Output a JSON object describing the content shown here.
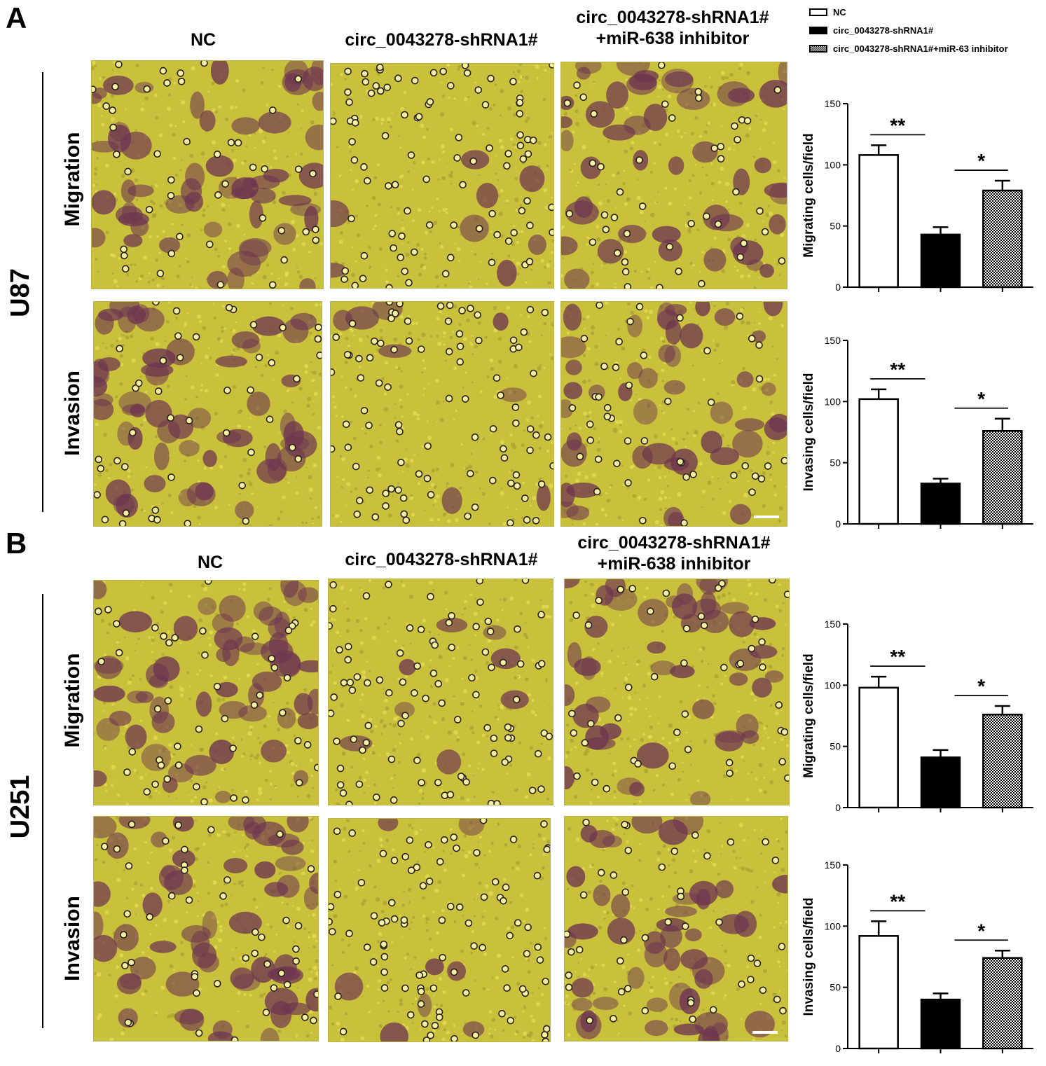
{
  "panels": [
    {
      "letter": "A",
      "cell_line": "U87",
      "col_labels": [
        "NC",
        "circ_0043278-shRNA1#",
        "circ_0043278-shRNA1#",
        "+miR-638 inhibitor"
      ],
      "row_labels": [
        "Migration",
        "Invasion"
      ]
    },
    {
      "letter": "B",
      "cell_line": "U251",
      "col_labels": [
        "NC",
        "circ_0043278-shRNA1#",
        "circ_0043278-shRNA1#",
        "+miR-638 inhibitor"
      ],
      "row_labels": [
        "Migration",
        "Invasion"
      ]
    }
  ],
  "legend": {
    "items": [
      {
        "label": "NC",
        "style": "open"
      },
      {
        "label": "circ_0043278-shRNA1#",
        "style": "solid"
      },
      {
        "label": "circ_0043278-shRNA1#+miR-63 inhibitor",
        "style": "checker"
      }
    ]
  },
  "colors": {
    "micrograph_background": "#c9c03c",
    "cell_stain": "#6e3550",
    "bar_fill_solid": "#000000",
    "bar_fill_open": "#ffffff"
  },
  "chart_data": [
    {
      "type": "bar",
      "panel": "A",
      "ylabel": "Migrating cells/field",
      "ylim": [
        0,
        150
      ],
      "yticks": [
        0,
        50,
        100,
        150
      ],
      "values": [
        108,
        43,
        79
      ],
      "errors": [
        8,
        6,
        8
      ],
      "styles": [
        "open",
        "solid",
        "checker"
      ],
      "significance": [
        "**",
        "*"
      ]
    },
    {
      "type": "bar",
      "panel": "A",
      "ylabel": "Invasing cells/field",
      "ylim": [
        0,
        150
      ],
      "yticks": [
        0,
        50,
        100,
        150
      ],
      "values": [
        102,
        33,
        76
      ],
      "errors": [
        8,
        4,
        10
      ],
      "styles": [
        "open",
        "solid",
        "checker"
      ],
      "significance": [
        "**",
        "*"
      ]
    },
    {
      "type": "bar",
      "panel": "B",
      "ylabel": "Migrating cells/field",
      "ylim": [
        0,
        150
      ],
      "yticks": [
        0,
        50,
        100,
        150
      ],
      "values": [
        98,
        41,
        76
      ],
      "errors": [
        9,
        6,
        7
      ],
      "styles": [
        "open",
        "solid",
        "checker"
      ],
      "significance": [
        "**",
        "*"
      ]
    },
    {
      "type": "bar",
      "panel": "B",
      "ylabel": "Invasing cells/field",
      "ylim": [
        0,
        150
      ],
      "yticks": [
        0,
        50,
        100,
        150
      ],
      "values": [
        92,
        40,
        74
      ],
      "errors": [
        12,
        5,
        6
      ],
      "styles": [
        "open",
        "solid",
        "checker"
      ],
      "significance": [
        "**",
        "*"
      ]
    }
  ]
}
